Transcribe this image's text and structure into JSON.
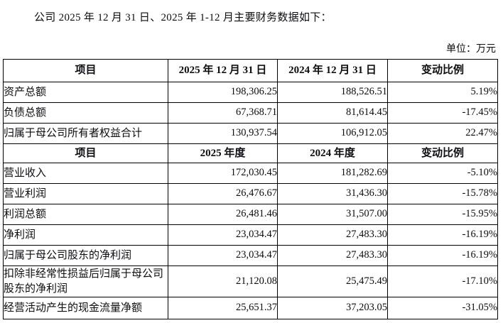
{
  "page": {
    "title": "公司 2025 年 12 月 31 日、2025 年 1-12 月主要财务数据如下：",
    "unit_label": "单位：万元"
  },
  "table": {
    "section1": {
      "headers": [
        "项目",
        "2025 年 12 月 31 日",
        "2024 年 12 月 31 日",
        "变动比例"
      ],
      "rows": [
        {
          "item": "资产总额",
          "v2025": "198,306.25",
          "v2024": "188,526.51",
          "change": "5.19%"
        },
        {
          "item": "负债总额",
          "v2025": "67,368.71",
          "v2024": "81,614.45",
          "change": "-17.45%"
        },
        {
          "item": "归属于母公司所有者权益合计",
          "v2025": "130,937.54",
          "v2024": "106,912.05",
          "change": "22.47%"
        }
      ]
    },
    "section2": {
      "headers": [
        "项目",
        "2025 年度",
        "2024 年度",
        "变动比例"
      ],
      "rows": [
        {
          "item": "营业收入",
          "v2025": "172,030.45",
          "v2024": "181,282.69",
          "change": "-5.10%"
        },
        {
          "item": "营业利润",
          "v2025": "26,476.67",
          "v2024": "31,436.30",
          "change": "-15.78%"
        },
        {
          "item": "利润总额",
          "v2025": "26,481.46",
          "v2024": "31,507.00",
          "change": "-15.95%"
        },
        {
          "item": "净利润",
          "v2025": "23,034.47",
          "v2024": "27,483.30",
          "change": "-16.19%"
        },
        {
          "item": "归属于母公司股东的净利润",
          "v2025": "23,034.47",
          "v2024": "27,483.30",
          "change": "-16.19%"
        },
        {
          "item": "扣除非经常性损益后归属于母公司股东的净利润",
          "v2025": "21,120.08",
          "v2024": "25,475.49",
          "change": "-17.10%"
        },
        {
          "item": "经营活动产生的现金流量净额",
          "v2025": "25,651.37",
          "v2024": "37,203.05",
          "change": "-31.05%"
        }
      ]
    }
  }
}
